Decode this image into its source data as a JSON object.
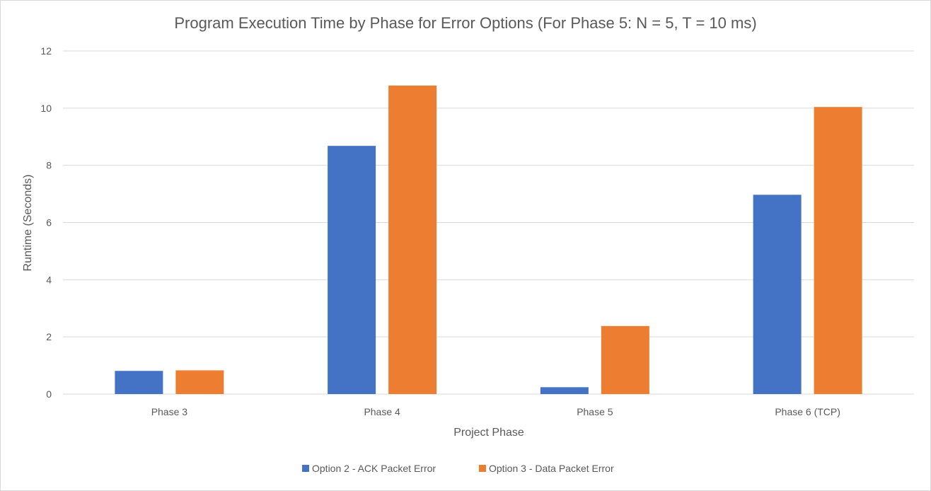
{
  "chart_data": {
    "type": "bar",
    "title": "Program Execution Time by Phase for Error Options (For Phase 5: N = 5, T = 10 ms)",
    "xlabel": "Project Phase",
    "ylabel": "Runtime (Seconds)",
    "categories": [
      "Phase 3",
      "Phase 4",
      "Phase 5",
      "Phase 6 (TCP)"
    ],
    "series": [
      {
        "name": "Option 2 - ACK Packet Error",
        "color": "#4472c4",
        "values": [
          0.81,
          8.68,
          0.24,
          6.97
        ]
      },
      {
        "name": "Option 3 - Data Packet Error",
        "color": "#ed7d31",
        "values": [
          0.83,
          10.79,
          2.38,
          10.04
        ]
      }
    ],
    "ylim": [
      0,
      12
    ],
    "yticks": [
      0,
      2,
      4,
      6,
      8,
      10,
      12
    ],
    "grid": true,
    "legend": "bottom"
  }
}
